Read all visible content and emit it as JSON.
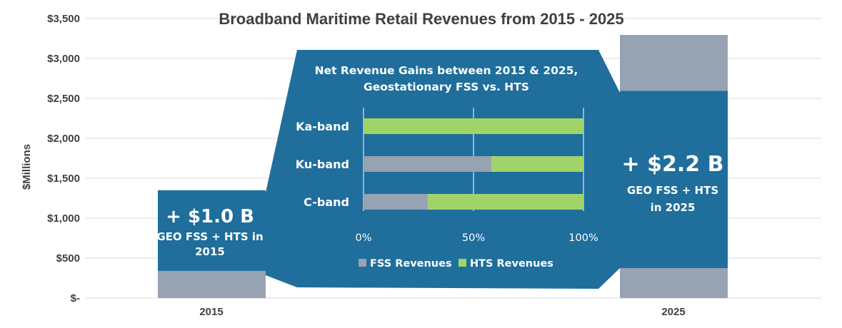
{
  "chart_data": [
    {
      "type": "bar",
      "title": "Broadband Maritime Retail Revenues from 2015 - 2025",
      "ylabel": "$Millions",
      "xlabel": "",
      "categories": [
        "2015",
        "2025"
      ],
      "ylim": [
        0,
        3500
      ],
      "yticks": [
        0,
        500,
        1000,
        1500,
        2000,
        2500,
        3000,
        3500
      ],
      "ytick_labels": [
        "$-",
        "$500",
        "$1,000",
        "$1,500",
        "$2,000",
        "$2,500",
        "$3,000",
        "$3,500"
      ],
      "grid": true,
      "series": [
        {
          "values": [
            340,
            385
          ],
          "color": "#97a2b2"
        },
        {
          "values": [
            1010,
            2210
          ],
          "color": "#1f6e9c"
        },
        {
          "values": [
            0,
            700
          ],
          "color": "#97a2b2"
        }
      ]
    },
    {
      "type": "bar",
      "orientation": "horizontal",
      "stacked": "percent",
      "title": "Net Revenue Gains between 2015 & 2025,\nGeostationary FSS vs. HTS",
      "categories": [
        "Ka-band",
        "Ku-band",
        "C-band"
      ],
      "xlim": [
        0,
        100
      ],
      "xticks": [
        0,
        50,
        100
      ],
      "xtick_labels": [
        "0%",
        "50%",
        "100%"
      ],
      "legend": "bottom",
      "series": [
        {
          "name": "FSS Revenues",
          "values": [
            0,
            58,
            29
          ],
          "color": "#97a2b2"
        },
        {
          "name": "HTS Revenues",
          "values": [
            100,
            42,
            71
          ],
          "color": "#a0d468"
        }
      ]
    }
  ],
  "callouts": {
    "left_big": "+ $1.0 B",
    "left_line1": "GEO FSS + HTS in",
    "left_line2": "2015",
    "right_big": "+ $2.2 B",
    "right_line1": "GEO FSS + HTS",
    "right_line2": "in 2025"
  },
  "colors": {
    "band": "#1f6e9c",
    "fss": "#97a2b2",
    "hts": "#a0d468",
    "text": "#404040",
    "grid": "#d9d9d9"
  }
}
